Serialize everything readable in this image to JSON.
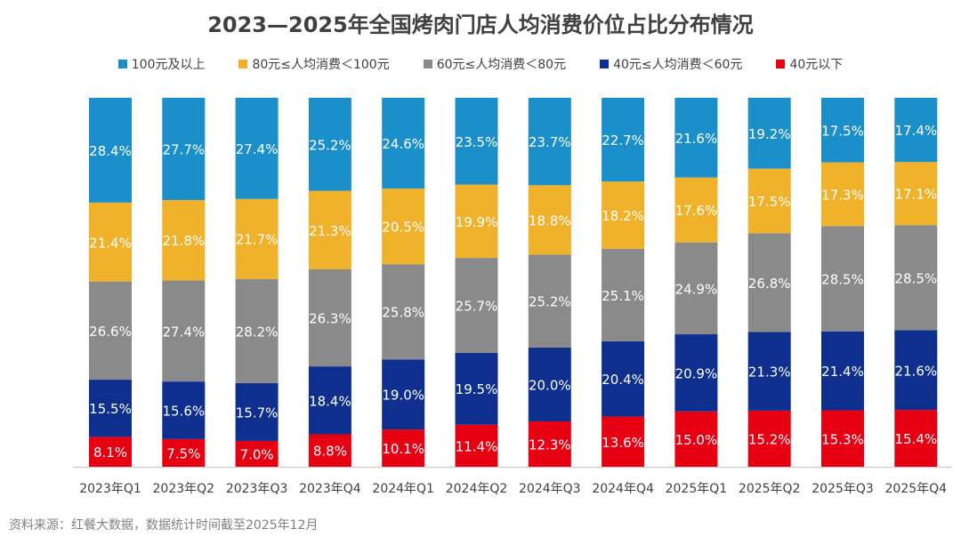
{
  "chart_data": {
    "type": "bar",
    "stacked": true,
    "title": "2023—2025年全国烤肉门店人均消费价位占比分布情况",
    "categories": [
      "2023年Q1",
      "2023年Q2",
      "2023年Q3",
      "2023年Q4",
      "2024年Q1",
      "2024年Q2",
      "2024年Q3",
      "2024年Q4",
      "2025年Q1",
      "2025年Q2",
      "2025年Q3",
      "2025年Q4"
    ],
    "series": [
      {
        "name": "40元以下",
        "color": "#e60012",
        "values": [
          8.1,
          7.5,
          7.0,
          8.8,
          10.1,
          11.4,
          12.3,
          13.6,
          15.0,
          15.2,
          15.3,
          15.4
        ]
      },
      {
        "name": "40元≤人均消费＜60元",
        "color": "#0f2f8f",
        "values": [
          15.5,
          15.6,
          15.7,
          18.4,
          19.0,
          19.5,
          20.0,
          20.4,
          20.9,
          21.3,
          21.4,
          21.6
        ]
      },
      {
        "name": "60元≤人均消费＜80元",
        "color": "#8a8a8a",
        "values": [
          26.6,
          27.4,
          28.2,
          26.3,
          25.8,
          25.7,
          25.2,
          25.1,
          24.9,
          26.8,
          28.5,
          28.5
        ]
      },
      {
        "name": "80元≤人均消费＜100元",
        "color": "#f0b12b",
        "values": [
          21.4,
          21.8,
          21.7,
          21.3,
          20.5,
          19.9,
          18.8,
          18.2,
          17.6,
          17.5,
          17.3,
          17.1
        ]
      },
      {
        "name": "100元及以上",
        "color": "#1b8fca",
        "values": [
          28.4,
          27.7,
          27.4,
          25.2,
          24.6,
          23.5,
          23.7,
          22.7,
          21.6,
          19.2,
          17.5,
          17.4
        ]
      }
    ],
    "legend_order": [
      "100元及以上",
      "80元≤人均消费＜100元",
      "60元≤人均消费＜80元",
      "40元≤人均消费＜60元",
      "40元以下"
    ],
    "ylim": [
      0,
      100
    ],
    "value_suffix": "%",
    "legend_position": "top",
    "grid": false
  },
  "source": "资料来源：红餐大数据，数据统计时间截至2025年12月"
}
